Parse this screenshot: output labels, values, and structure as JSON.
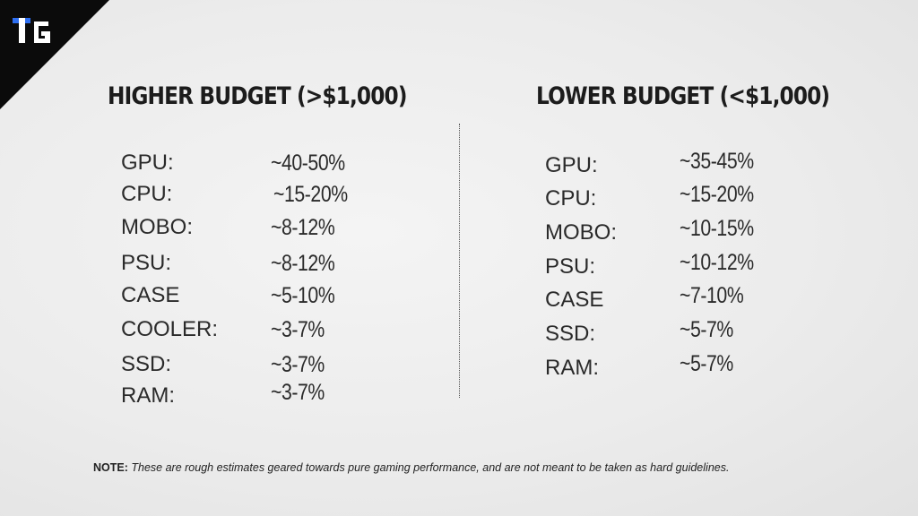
{
  "logo": {
    "text": "TG"
  },
  "left": {
    "title": "HIGHER BUDGET (>$1,000)",
    "rows": [
      {
        "label": "GPU:",
        "value": "~40-50%"
      },
      {
        "label": "CPU:",
        "value": "~15-20%"
      },
      {
        "label": "MOBO:",
        "value": "~8-12%"
      },
      {
        "label": "PSU:",
        "value": "~8-12%"
      },
      {
        "label": "CASE",
        "value": "~5-10%"
      },
      {
        "label": "COOLER:",
        "value": "~3-7%"
      },
      {
        "label": "SSD:",
        "value": "~3-7%"
      },
      {
        "label": "RAM:",
        "value": "~3-7%"
      }
    ]
  },
  "right": {
    "title": "LOWER BUDGET (<$1,000)",
    "rows": [
      {
        "label": "GPU:",
        "value": "~35-45%"
      },
      {
        "label": "CPU:",
        "value": "~15-20%"
      },
      {
        "label": "MOBO:",
        "value": "~10-15%"
      },
      {
        "label": "PSU:",
        "value": "~10-12%"
      },
      {
        "label": "CASE",
        "value": "~7-10%"
      },
      {
        "label": "SSD:",
        "value": "~5-7%"
      },
      {
        "label": "RAM:",
        "value": "~5-7%"
      }
    ]
  },
  "note": {
    "prefix": "NOTE:",
    "text": "These are rough estimates geared towards pure gaming performance, and are not meant to be taken as hard guidelines."
  }
}
